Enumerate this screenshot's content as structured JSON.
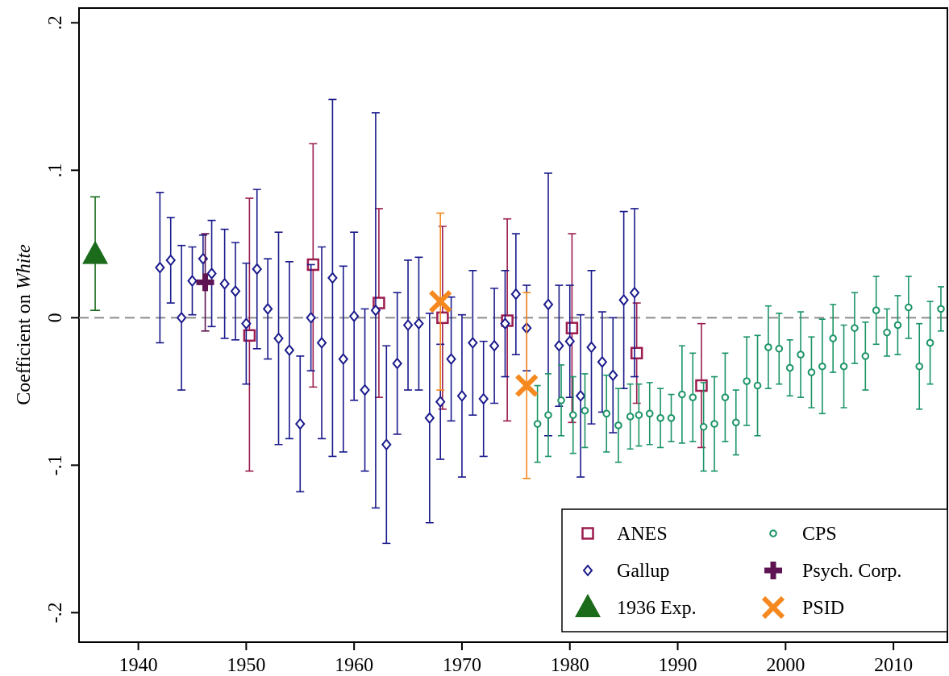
{
  "chart_data": {
    "type": "scatter",
    "title": "",
    "xlabel": "",
    "ylabel_prefix": "Coefficient on ",
    "ylabel_italic": "White",
    "xlim": [
      1934.5,
      2015
    ],
    "ylim": [
      -0.22,
      0.21
    ],
    "x_ticks": [
      1940,
      1950,
      1960,
      1970,
      1980,
      1990,
      2000,
      2010
    ],
    "x_tick_labels": [
      "1940",
      "1950",
      "1960",
      "1970",
      "1980",
      "1990",
      "2000",
      "2010"
    ],
    "y_ticks": [
      -0.2,
      -0.1,
      0,
      0.1,
      0.2
    ],
    "y_tick_labels": [
      "-.2",
      "-.1",
      "0",
      ".1",
      ".2"
    ],
    "reference_line": 0,
    "grid": false,
    "legend_position": "bottom-right",
    "series": [
      {
        "name": "ANES",
        "marker": "hollow-square",
        "color": "#9b1c4f",
        "points": [
          {
            "x": 1950.3,
            "y": -0.012,
            "lo": -0.104,
            "hi": 0.081
          },
          {
            "x": 1956.2,
            "y": 0.036,
            "lo": -0.047,
            "hi": 0.118
          },
          {
            "x": 1962.3,
            "y": 0.01,
            "lo": -0.054,
            "hi": 0.074
          },
          {
            "x": 1968.2,
            "y": 0.0,
            "lo": -0.062,
            "hi": 0.062
          },
          {
            "x": 1974.2,
            "y": -0.002,
            "lo": -0.07,
            "hi": 0.067
          },
          {
            "x": 1980.2,
            "y": -0.007,
            "lo": -0.071,
            "hi": 0.057
          },
          {
            "x": 1986.2,
            "y": -0.024,
            "lo": -0.058,
            "hi": 0.01
          },
          {
            "x": 1992.2,
            "y": -0.046,
            "lo": -0.088,
            "hi": -0.004
          }
        ]
      },
      {
        "name": "Gallup",
        "marker": "hollow-diamond",
        "color": "#1a1a8c",
        "points": [
          {
            "x": 1942.0,
            "y": 0.034,
            "lo": -0.017,
            "hi": 0.085
          },
          {
            "x": 1943.0,
            "y": 0.039,
            "lo": 0.01,
            "hi": 0.068
          },
          {
            "x": 1944.0,
            "y": 0.0,
            "lo": -0.049,
            "hi": 0.049
          },
          {
            "x": 1945.0,
            "y": 0.025,
            "lo": 0.002,
            "hi": 0.048
          },
          {
            "x": 1946.0,
            "y": 0.04,
            "lo": 0.024,
            "hi": 0.056
          },
          {
            "x": 1946.8,
            "y": 0.03,
            "lo": -0.006,
            "hi": 0.066
          },
          {
            "x": 1948.0,
            "y": 0.023,
            "lo": -0.014,
            "hi": 0.06
          },
          {
            "x": 1949.0,
            "y": 0.018,
            "lo": -0.015,
            "hi": 0.051
          },
          {
            "x": 1950.0,
            "y": -0.004,
            "lo": -0.045,
            "hi": 0.037
          },
          {
            "x": 1951.0,
            "y": 0.033,
            "lo": -0.021,
            "hi": 0.087
          },
          {
            "x": 1952.0,
            "y": 0.006,
            "lo": -0.028,
            "hi": 0.04
          },
          {
            "x": 1953.0,
            "y": -0.014,
            "lo": -0.086,
            "hi": 0.058
          },
          {
            "x": 1954.0,
            "y": -0.022,
            "lo": -0.082,
            "hi": 0.038
          },
          {
            "x": 1955.0,
            "y": -0.072,
            "lo": -0.118,
            "hi": -0.026
          },
          {
            "x": 1956.0,
            "y": 0.0,
            "lo": -0.036,
            "hi": 0.036
          },
          {
            "x": 1957.0,
            "y": -0.017,
            "lo": -0.082,
            "hi": 0.048
          },
          {
            "x": 1958.0,
            "y": 0.027,
            "lo": -0.094,
            "hi": 0.148
          },
          {
            "x": 1959.0,
            "y": -0.028,
            "lo": -0.091,
            "hi": 0.035
          },
          {
            "x": 1960.0,
            "y": 0.001,
            "lo": -0.056,
            "hi": 0.058
          },
          {
            "x": 1961.0,
            "y": -0.049,
            "lo": -0.104,
            "hi": 0.006
          },
          {
            "x": 1962.0,
            "y": 0.005,
            "lo": -0.129,
            "hi": 0.139
          },
          {
            "x": 1963.0,
            "y": -0.086,
            "lo": -0.153,
            "hi": -0.019
          },
          {
            "x": 1964.0,
            "y": -0.031,
            "lo": -0.079,
            "hi": 0.017
          },
          {
            "x": 1965.0,
            "y": -0.005,
            "lo": -0.049,
            "hi": 0.039
          },
          {
            "x": 1966.0,
            "y": -0.004,
            "lo": -0.049,
            "hi": 0.041
          },
          {
            "x": 1967.0,
            "y": -0.068,
            "lo": -0.139,
            "hi": 0.003
          },
          {
            "x": 1968.0,
            "y": -0.057,
            "lo": -0.096,
            "hi": -0.018
          },
          {
            "x": 1969.0,
            "y": -0.028,
            "lo": -0.07,
            "hi": 0.014
          },
          {
            "x": 1970.0,
            "y": -0.053,
            "lo": -0.108,
            "hi": 0.002
          },
          {
            "x": 1971.0,
            "y": -0.017,
            "lo": -0.066,
            "hi": 0.032
          },
          {
            "x": 1972.0,
            "y": -0.055,
            "lo": -0.094,
            "hi": -0.016
          },
          {
            "x": 1973.0,
            "y": -0.019,
            "lo": -0.058,
            "hi": 0.02
          },
          {
            "x": 1974.0,
            "y": -0.004,
            "lo": -0.04,
            "hi": 0.032
          },
          {
            "x": 1975.0,
            "y": 0.016,
            "lo": -0.025,
            "hi": 0.057
          },
          {
            "x": 1976.0,
            "y": -0.007,
            "lo": -0.036,
            "hi": 0.022
          },
          {
            "x": 1978.0,
            "y": 0.009,
            "lo": -0.08,
            "hi": 0.098
          },
          {
            "x": 1979.0,
            "y": -0.019,
            "lo": -0.06,
            "hi": 0.022
          },
          {
            "x": 1980.0,
            "y": -0.016,
            "lo": -0.054,
            "hi": 0.022
          },
          {
            "x": 1981.0,
            "y": -0.053,
            "lo": -0.108,
            "hi": 0.002
          },
          {
            "x": 1982.0,
            "y": -0.02,
            "lo": -0.072,
            "hi": 0.032
          },
          {
            "x": 1983.0,
            "y": -0.03,
            "lo": -0.064,
            "hi": 0.004
          },
          {
            "x": 1984.0,
            "y": -0.039,
            "lo": -0.078,
            "hi": 0.0
          },
          {
            "x": 1985.0,
            "y": 0.012,
            "lo": -0.048,
            "hi": 0.072
          },
          {
            "x": 1986.0,
            "y": 0.017,
            "lo": -0.04,
            "hi": 0.074
          }
        ]
      },
      {
        "name": "1936 Exp.",
        "marker": "filled-triangle",
        "color": "#1b6b1b",
        "points": [
          {
            "x": 1936.0,
            "y": 0.043,
            "lo": 0.005,
            "hi": 0.082
          }
        ]
      },
      {
        "name": "CPS",
        "marker": "hollow-circle",
        "color": "#1b9466",
        "points": [
          {
            "x": 1977.0,
            "y": -0.072,
            "lo": -0.098,
            "hi": -0.046
          },
          {
            "x": 1978.0,
            "y": -0.066,
            "lo": -0.094,
            "hi": -0.038
          },
          {
            "x": 1979.2,
            "y": -0.056,
            "lo": -0.08,
            "hi": -0.032
          },
          {
            "x": 1980.3,
            "y": -0.066,
            "lo": -0.092,
            "hi": -0.04
          },
          {
            "x": 1981.4,
            "y": -0.063,
            "lo": -0.088,
            "hi": -0.038
          },
          {
            "x": 1983.4,
            "y": -0.065,
            "lo": -0.091,
            "hi": -0.039
          },
          {
            "x": 1984.5,
            "y": -0.073,
            "lo": -0.098,
            "hi": -0.048
          },
          {
            "x": 1985.6,
            "y": -0.067,
            "lo": -0.089,
            "hi": -0.045
          },
          {
            "x": 1986.4,
            "y": -0.066,
            "lo": -0.087,
            "hi": -0.045
          },
          {
            "x": 1987.4,
            "y": -0.065,
            "lo": -0.086,
            "hi": -0.044
          },
          {
            "x": 1988.4,
            "y": -0.068,
            "lo": -0.088,
            "hi": -0.048
          },
          {
            "x": 1989.4,
            "y": -0.068,
            "lo": -0.084,
            "hi": -0.052
          },
          {
            "x": 1990.4,
            "y": -0.052,
            "lo": -0.085,
            "hi": -0.019
          },
          {
            "x": 1991.4,
            "y": -0.054,
            "lo": -0.084,
            "hi": -0.024
          },
          {
            "x": 1992.4,
            "y": -0.074,
            "lo": -0.104,
            "hi": -0.044
          },
          {
            "x": 1993.4,
            "y": -0.072,
            "lo": -0.104,
            "hi": -0.04
          },
          {
            "x": 1994.4,
            "y": -0.054,
            "lo": -0.084,
            "hi": -0.024
          },
          {
            "x": 1995.4,
            "y": -0.071,
            "lo": -0.093,
            "hi": -0.049
          },
          {
            "x": 1996.4,
            "y": -0.043,
            "lo": -0.073,
            "hi": -0.013
          },
          {
            "x": 1997.4,
            "y": -0.046,
            "lo": -0.08,
            "hi": -0.012
          },
          {
            "x": 1998.4,
            "y": -0.02,
            "lo": -0.048,
            "hi": 0.008
          },
          {
            "x": 1999.4,
            "y": -0.021,
            "lo": -0.045,
            "hi": 0.003
          },
          {
            "x": 2000.4,
            "y": -0.034,
            "lo": -0.053,
            "hi": -0.015
          },
          {
            "x": 2001.4,
            "y": -0.025,
            "lo": -0.054,
            "hi": 0.004
          },
          {
            "x": 2002.4,
            "y": -0.037,
            "lo": -0.061,
            "hi": -0.013
          },
          {
            "x": 2003.4,
            "y": -0.033,
            "lo": -0.065,
            "hi": -0.001
          },
          {
            "x": 2004.4,
            "y": -0.014,
            "lo": -0.037,
            "hi": 0.009
          },
          {
            "x": 2005.4,
            "y": -0.033,
            "lo": -0.061,
            "hi": -0.005
          },
          {
            "x": 2006.4,
            "y": -0.007,
            "lo": -0.031,
            "hi": 0.017
          },
          {
            "x": 2007.4,
            "y": -0.026,
            "lo": -0.049,
            "hi": -0.003
          },
          {
            "x": 2008.4,
            "y": 0.005,
            "lo": -0.018,
            "hi": 0.028
          },
          {
            "x": 2009.4,
            "y": -0.01,
            "lo": -0.026,
            "hi": 0.006
          },
          {
            "x": 2010.4,
            "y": -0.005,
            "lo": -0.025,
            "hi": 0.015
          },
          {
            "x": 2011.4,
            "y": 0.007,
            "lo": -0.014,
            "hi": 0.028
          },
          {
            "x": 2012.4,
            "y": -0.033,
            "lo": -0.062,
            "hi": -0.004
          },
          {
            "x": 2013.4,
            "y": -0.017,
            "lo": -0.045,
            "hi": 0.011
          },
          {
            "x": 2014.4,
            "y": 0.006,
            "lo": -0.009,
            "hi": 0.021
          }
        ]
      },
      {
        "name": "Psych. Corp.",
        "marker": "filled-plus",
        "color": "#5e1452",
        "points": [
          {
            "x": 1946.2,
            "y": 0.024,
            "lo": -0.009,
            "hi": 0.057
          }
        ]
      },
      {
        "name": "PSID",
        "marker": "x-cross",
        "color": "#f5891f",
        "points": [
          {
            "x": 1968.0,
            "y": 0.011,
            "lo": -0.049,
            "hi": 0.071
          },
          {
            "x": 1976.0,
            "y": -0.046,
            "lo": -0.109,
            "hi": 0.017
          }
        ]
      }
    ],
    "legend": [
      {
        "label": "ANES",
        "marker": "hollow-square",
        "color": "#9b1c4f"
      },
      {
        "label": "CPS",
        "marker": "hollow-circle",
        "color": "#1b9466"
      },
      {
        "label": "Gallup",
        "marker": "hollow-diamond",
        "color": "#1a1a8c"
      },
      {
        "label": "Psych. Corp.",
        "marker": "filled-plus",
        "color": "#5e1452"
      },
      {
        "label": "1936 Exp.",
        "marker": "filled-triangle",
        "color": "#1b6b1b"
      },
      {
        "label": "PSID",
        "marker": "x-cross",
        "color": "#f5891f"
      }
    ]
  }
}
